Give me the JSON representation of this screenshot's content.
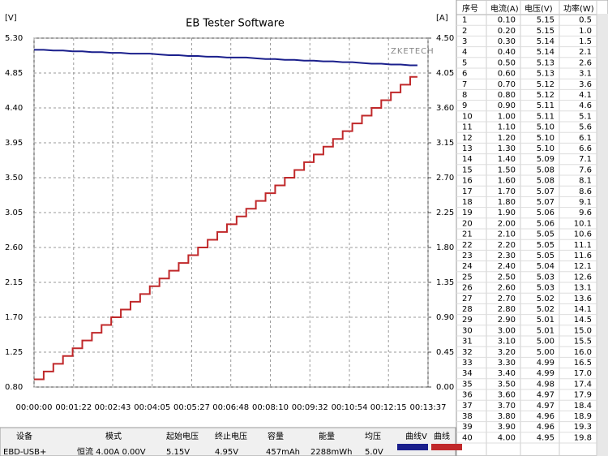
{
  "chart_data": {
    "type": "line",
    "title": "EB Tester Software",
    "y_label": "[V]",
    "y2_label": "[A]",
    "annotation": "ZKETECH",
    "grid": true,
    "step": "post",
    "x": [
      0,
      20,
      40,
      60,
      80,
      100,
      120,
      140,
      160,
      180,
      200,
      220,
      240,
      260,
      280,
      300,
      320,
      340,
      360,
      380,
      400,
      420,
      440,
      460,
      480,
      500,
      520,
      540,
      560,
      580,
      600,
      620,
      640,
      660,
      680,
      700,
      720,
      740,
      760,
      780,
      795
    ],
    "xlim": [
      0,
      817
    ],
    "xticks": [
      {
        "value": 0,
        "label": "00:00:00"
      },
      {
        "value": 82,
        "label": "00:01:22"
      },
      {
        "value": 163,
        "label": "00:02:43"
      },
      {
        "value": 245,
        "label": "00:04:05"
      },
      {
        "value": 327,
        "label": "00:05:27"
      },
      {
        "value": 408,
        "label": "00:06:48"
      },
      {
        "value": 490,
        "label": "00:08:10"
      },
      {
        "value": 572,
        "label": "00:09:32"
      },
      {
        "value": 654,
        "label": "00:10:54"
      },
      {
        "value": 735,
        "label": "00:12:15"
      },
      {
        "value": 817,
        "label": "00:13:37"
      }
    ],
    "ylim": [
      0.8,
      5.3
    ],
    "yticks": [
      {
        "value": 0.8,
        "label": "0.80"
      },
      1.25,
      {
        "value": 1.7,
        "label": "1.70"
      },
      2.15,
      {
        "value": 2.6,
        "label": "2.60"
      },
      3.05,
      {
        "value": 3.5,
        "label": "3.50"
      },
      3.95,
      {
        "value": 4.4,
        "label": "4.40"
      },
      4.85,
      {
        "value": 5.3,
        "label": "5.30"
      }
    ],
    "y2lim": [
      0,
      4.5
    ],
    "y2ticks": [
      {
        "value": 0,
        "label": "0.00"
      },
      0.45,
      {
        "value": 0.9,
        "label": "0.90"
      },
      1.35,
      {
        "value": 1.8,
        "label": "1.80"
      },
      2.25,
      {
        "value": 2.7,
        "label": "2.70"
      },
      3.15,
      {
        "value": 3.6,
        "label": "3.60"
      },
      4.05,
      {
        "value": 4.5,
        "label": "4.50"
      }
    ],
    "series": [
      {
        "color": "#1a1f8c",
        "values": [
          5.15,
          5.15,
          5.14,
          5.14,
          5.13,
          5.13,
          5.12,
          5.12,
          5.11,
          5.11,
          5.1,
          5.1,
          5.1,
          5.09,
          5.08,
          5.08,
          5.07,
          5.07,
          5.06,
          5.06,
          5.05,
          5.05,
          5.05,
          5.04,
          5.03,
          5.03,
          5.02,
          5.02,
          5.01,
          5.01,
          5.0,
          5.0,
          4.99,
          4.99,
          4.98,
          4.97,
          4.97,
          4.96,
          4.96,
          4.95,
          4.95
        ]
      },
      {
        "color": "#c0282a",
        "axis": "y2",
        "values": [
          0.1,
          0.2,
          0.3,
          0.4,
          0.5,
          0.6,
          0.7,
          0.8,
          0.9,
          1.0,
          1.1,
          1.2,
          1.3,
          1.4,
          1.5,
          1.6,
          1.7,
          1.8,
          1.9,
          2.0,
          2.1,
          2.2,
          2.3,
          2.4,
          2.5,
          2.6,
          2.7,
          2.8,
          2.9,
          3.0,
          3.1,
          3.2,
          3.3,
          3.4,
          3.5,
          3.6,
          3.7,
          3.8,
          3.9,
          4.0,
          4.0
        ]
      }
    ]
  },
  "table": {
    "header": [
      "序号",
      "电流(A)",
      "电压(V)",
      "功率(W)"
    ],
    "rows": [
      [
        "1",
        "0.10",
        "5.15",
        "0.5"
      ],
      [
        "2",
        "0.20",
        "5.15",
        "1.0"
      ],
      [
        "3",
        "0.30",
        "5.14",
        "1.5"
      ],
      [
        "4",
        "0.40",
        "5.14",
        "2.1"
      ],
      [
        "5",
        "0.50",
        "5.13",
        "2.6"
      ],
      [
        "6",
        "0.60",
        "5.13",
        "3.1"
      ],
      [
        "7",
        "0.70",
        "5.12",
        "3.6"
      ],
      [
        "8",
        "0.80",
        "5.12",
        "4.1"
      ],
      [
        "9",
        "0.90",
        "5.11",
        "4.6"
      ],
      [
        "10",
        "1.00",
        "5.11",
        "5.1"
      ],
      [
        "11",
        "1.10",
        "5.10",
        "5.6"
      ],
      [
        "12",
        "1.20",
        "5.10",
        "6.1"
      ],
      [
        "13",
        "1.30",
        "5.10",
        "6.6"
      ],
      [
        "14",
        "1.40",
        "5.09",
        "7.1"
      ],
      [
        "15",
        "1.50",
        "5.08",
        "7.6"
      ],
      [
        "16",
        "1.60",
        "5.08",
        "8.1"
      ],
      [
        "17",
        "1.70",
        "5.07",
        "8.6"
      ],
      [
        "18",
        "1.80",
        "5.07",
        "9.1"
      ],
      [
        "19",
        "1.90",
        "5.06",
        "9.6"
      ],
      [
        "20",
        "2.00",
        "5.06",
        "10.1"
      ],
      [
        "21",
        "2.10",
        "5.05",
        "10.6"
      ],
      [
        "22",
        "2.20",
        "5.05",
        "11.1"
      ],
      [
        "23",
        "2.30",
        "5.05",
        "11.6"
      ],
      [
        "24",
        "2.40",
        "5.04",
        "12.1"
      ],
      [
        "25",
        "2.50",
        "5.03",
        "12.6"
      ],
      [
        "26",
        "2.60",
        "5.03",
        "13.1"
      ],
      [
        "27",
        "2.70",
        "5.02",
        "13.6"
      ],
      [
        "28",
        "2.80",
        "5.02",
        "14.1"
      ],
      [
        "29",
        "2.90",
        "5.01",
        "14.5"
      ],
      [
        "30",
        "3.00",
        "5.01",
        "15.0"
      ],
      [
        "31",
        "3.10",
        "5.00",
        "15.5"
      ],
      [
        "32",
        "3.20",
        "5.00",
        "16.0"
      ],
      [
        "33",
        "3.30",
        "4.99",
        "16.5"
      ],
      [
        "34",
        "3.40",
        "4.99",
        "17.0"
      ],
      [
        "35",
        "3.50",
        "4.98",
        "17.4"
      ],
      [
        "36",
        "3.60",
        "4.97",
        "17.9"
      ],
      [
        "37",
        "3.70",
        "4.97",
        "18.4"
      ],
      [
        "38",
        "3.80",
        "4.96",
        "18.9"
      ],
      [
        "39",
        "3.90",
        "4.96",
        "19.3"
      ],
      [
        "40",
        "4.00",
        "4.95",
        "19.8"
      ]
    ]
  },
  "summary": {
    "header": [
      "设备",
      "模式",
      "起始电压",
      "终止电压",
      "容量",
      "能量",
      "均压",
      "曲线V",
      "曲线"
    ],
    "row": [
      "EBD-USB+",
      "恒流 4.00A 0.00V",
      "5.15V",
      "4.95V",
      "457mAh",
      "2288mWh",
      "5.0V"
    ]
  }
}
